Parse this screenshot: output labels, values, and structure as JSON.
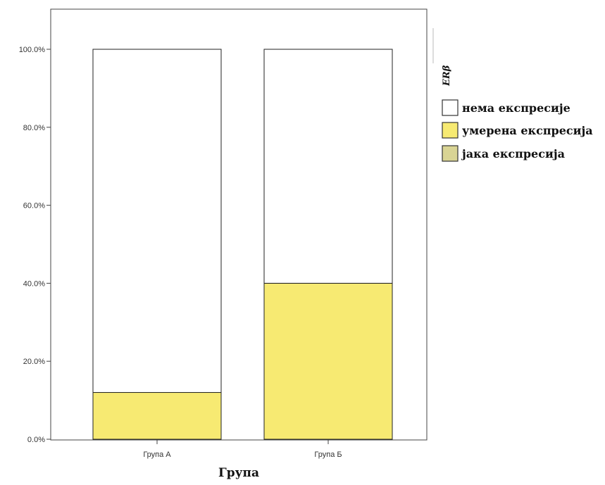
{
  "chart_data": {
    "type": "bar",
    "stacked": true,
    "categories": [
      "Група А",
      "Група Б"
    ],
    "series": [
      {
        "name": "нема експресије",
        "values": [
          88,
          60
        ],
        "color": "#ffffff"
      },
      {
        "name": "умерена експресија",
        "values": [
          12,
          40
        ],
        "color": "#f7ea72"
      },
      {
        "name": "јака експресија",
        "values": [
          0,
          0
        ],
        "color": "#d9d494"
      }
    ],
    "xlabel": "Група",
    "ylabel": "",
    "ylim": [
      0,
      100
    ],
    "yticks": [
      "0.0%",
      "20.0%",
      "40.0%",
      "60.0%",
      "80.0%",
      "100.0%"
    ],
    "legend_title": "ERβ",
    "legend_position": "right",
    "grid": false
  }
}
